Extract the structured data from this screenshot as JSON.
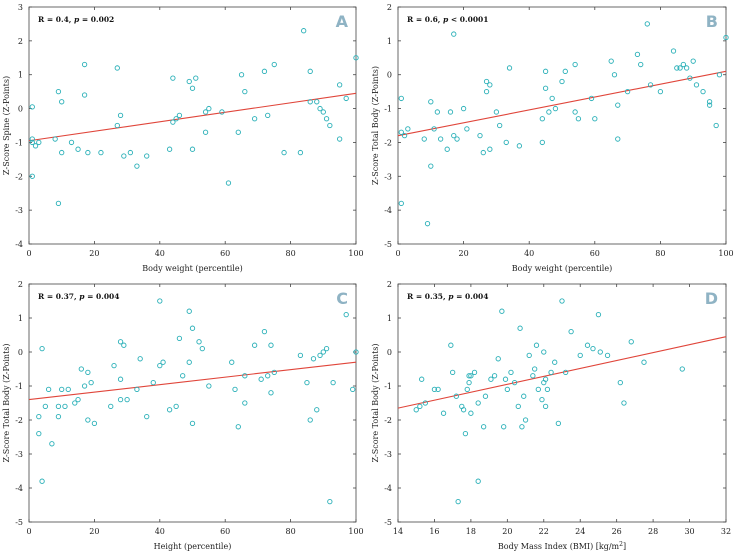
{
  "colors": {
    "point": "#2ab0b8",
    "fit_line": "#e0453a",
    "axis": "#444444",
    "letter": "#8fb3c4"
  },
  "chart_data": [
    {
      "type": "scatter",
      "panel_label": "A",
      "stat_r": "R = 0.4, ",
      "stat_p": "p",
      "stat_p_rest": " = 0.002",
      "xlabel": "Body weight (percentile)",
      "ylabel": "Z-Score Spine (Z-Points)",
      "xlim": [
        0,
        100
      ],
      "ylim": [
        -4,
        3
      ],
      "xticks": [
        0,
        20,
        40,
        60,
        80,
        100
      ],
      "yticks": [
        3,
        2,
        1,
        0,
        -1,
        -2,
        -3,
        -4
      ],
      "fit_line": {
        "x": [
          0,
          100
        ],
        "y": [
          -0.95,
          0.45
        ]
      },
      "points": [
        [
          1,
          -0.9
        ],
        [
          1,
          -1.0
        ],
        [
          1,
          -2.0
        ],
        [
          1,
          0.05
        ],
        [
          2,
          -1.1
        ],
        [
          3,
          -1.0
        ],
        [
          8,
          -0.9
        ],
        [
          9,
          -2.8
        ],
        [
          9,
          0.5
        ],
        [
          10,
          0.2
        ],
        [
          10,
          -1.3
        ],
        [
          13,
          -1.0
        ],
        [
          15,
          -1.2
        ],
        [
          17,
          1.3
        ],
        [
          17,
          0.4
        ],
        [
          18,
          -1.3
        ],
        [
          22,
          -1.3
        ],
        [
          27,
          1.2
        ],
        [
          27,
          -0.5
        ],
        [
          28,
          -0.2
        ],
        [
          29,
          -1.4
        ],
        [
          31,
          -1.3
        ],
        [
          33,
          -1.7
        ],
        [
          36,
          -1.4
        ],
        [
          43,
          -1.2
        ],
        [
          44,
          0.9
        ],
        [
          44,
          -0.4
        ],
        [
          45,
          -0.3
        ],
        [
          46,
          -0.2
        ],
        [
          49,
          0.8
        ],
        [
          50,
          0.6
        ],
        [
          50,
          -1.2
        ],
        [
          51,
          0.9
        ],
        [
          54,
          -0.7
        ],
        [
          54,
          -0.1
        ],
        [
          55,
          0.0
        ],
        [
          59,
          -0.1
        ],
        [
          61,
          -2.2
        ],
        [
          64,
          -0.7
        ],
        [
          65,
          1.0
        ],
        [
          66,
          0.5
        ],
        [
          69,
          -0.3
        ],
        [
          72,
          1.1
        ],
        [
          73,
          -0.2
        ],
        [
          75,
          1.3
        ],
        [
          78,
          -1.3
        ],
        [
          83,
          -1.3
        ],
        [
          84,
          2.3
        ],
        [
          86,
          1.1
        ],
        [
          86,
          0.2
        ],
        [
          88,
          0.2
        ],
        [
          89,
          0.0
        ],
        [
          90,
          -0.1
        ],
        [
          91,
          -0.3
        ],
        [
          92,
          -0.5
        ],
        [
          95,
          -0.9
        ],
        [
          95,
          0.7
        ],
        [
          97,
          0.3
        ],
        [
          100,
          1.5
        ]
      ]
    },
    {
      "type": "scatter",
      "panel_label": "B",
      "stat_r": "R = 0.6, ",
      "stat_p": "p",
      "stat_p_rest": " < 0.0001",
      "xlabel": "Body weight (percentile)",
      "ylabel": "Z-Score Total Body (Z-Points)",
      "xlim": [
        0,
        100
      ],
      "ylim": [
        -5,
        2
      ],
      "xticks": [
        0,
        20,
        40,
        60,
        80,
        100
      ],
      "yticks": [
        2,
        1,
        0,
        -1,
        -2,
        -3,
        -4,
        -5
      ],
      "fit_line": {
        "x": [
          0,
          100
        ],
        "y": [
          -1.8,
          0.1
        ]
      },
      "points": [
        [
          1,
          -3.8
        ],
        [
          1,
          -1.7
        ],
        [
          1,
          -0.7
        ],
        [
          2,
          -1.8
        ],
        [
          3,
          -1.6
        ],
        [
          8,
          -1.9
        ],
        [
          9,
          -4.4
        ],
        [
          10,
          -0.8
        ],
        [
          10,
          -2.7
        ],
        [
          11,
          -1.6
        ],
        [
          12,
          -1.1
        ],
        [
          13,
          -1.9
        ],
        [
          15,
          -2.2
        ],
        [
          16,
          -1.1
        ],
        [
          17,
          -1.8
        ],
        [
          17,
          1.2
        ],
        [
          18,
          -1.9
        ],
        [
          20,
          -1.0
        ],
        [
          21,
          -1.6
        ],
        [
          25,
          -1.8
        ],
        [
          26,
          -2.3
        ],
        [
          27,
          -0.2
        ],
        [
          27,
          -0.5
        ],
        [
          28,
          -0.3
        ],
        [
          28,
          -2.2
        ],
        [
          30,
          -1.1
        ],
        [
          31,
          -1.5
        ],
        [
          33,
          -2.0
        ],
        [
          34,
          0.2
        ],
        [
          37,
          -2.1
        ],
        [
          44,
          -2.0
        ],
        [
          44,
          -1.3
        ],
        [
          45,
          0.1
        ],
        [
          45,
          -0.4
        ],
        [
          46,
          -1.1
        ],
        [
          47,
          -0.7
        ],
        [
          48,
          -1.0
        ],
        [
          50,
          -0.2
        ],
        [
          51,
          0.1
        ],
        [
          54,
          0.3
        ],
        [
          54,
          -1.1
        ],
        [
          55,
          -1.3
        ],
        [
          59,
          -0.7
        ],
        [
          60,
          -1.3
        ],
        [
          65,
          0.4
        ],
        [
          66,
          0.0
        ],
        [
          67,
          -0.9
        ],
        [
          67,
          -1.9
        ],
        [
          70,
          -0.5
        ],
        [
          73,
          0.6
        ],
        [
          74,
          0.3
        ],
        [
          76,
          1.5
        ],
        [
          77,
          -0.3
        ],
        [
          80,
          -0.5
        ],
        [
          84,
          0.7
        ],
        [
          85,
          0.2
        ],
        [
          86,
          0.2
        ],
        [
          87,
          0.3
        ],
        [
          88,
          0.2
        ],
        [
          89,
          -0.1
        ],
        [
          90,
          0.4
        ],
        [
          91,
          -0.3
        ],
        [
          93,
          -0.5
        ],
        [
          95,
          -0.8
        ],
        [
          95,
          -0.9
        ],
        [
          97,
          -1.5
        ],
        [
          98,
          0.0
        ],
        [
          100,
          1.1
        ]
      ]
    },
    {
      "type": "scatter",
      "panel_label": "C",
      "stat_r": "R = 0.37, ",
      "stat_p": "p",
      "stat_p_rest": " = 0.004",
      "xlabel": "Height (percentile)",
      "ylabel": "Z-Score Total Body (Z-Points)",
      "xlim": [
        0,
        100
      ],
      "ylim": [
        -5,
        2
      ],
      "xticks": [
        0,
        20,
        40,
        60,
        80,
        100
      ],
      "yticks": [
        2,
        1,
        0,
        -1,
        -2,
        -3,
        -4,
        -5
      ],
      "fit_line": {
        "x": [
          0,
          100
        ],
        "y": [
          -1.4,
          -0.3
        ]
      },
      "points": [
        [
          3,
          -1.9
        ],
        [
          3,
          -2.4
        ],
        [
          4,
          -3.8
        ],
        [
          4,
          0.1
        ],
        [
          5,
          -1.6
        ],
        [
          6,
          -1.1
        ],
        [
          7,
          -2.7
        ],
        [
          9,
          -1.9
        ],
        [
          9,
          -1.6
        ],
        [
          10,
          -1.1
        ],
        [
          11,
          -1.6
        ],
        [
          12,
          -1.1
        ],
        [
          14,
          -1.5
        ],
        [
          15,
          -1.4
        ],
        [
          16,
          -0.5
        ],
        [
          17,
          -1.0
        ],
        [
          18,
          -2.0
        ],
        [
          18,
          -0.6
        ],
        [
          19,
          -0.9
        ],
        [
          20,
          -2.1
        ],
        [
          25,
          -1.6
        ],
        [
          26,
          -0.4
        ],
        [
          28,
          0.3
        ],
        [
          28,
          -0.8
        ],
        [
          28,
          -1.4
        ],
        [
          29,
          0.2
        ],
        [
          30,
          -1.4
        ],
        [
          33,
          -1.1
        ],
        [
          34,
          -0.2
        ],
        [
          36,
          -1.9
        ],
        [
          38,
          -0.9
        ],
        [
          40,
          1.5
        ],
        [
          40,
          -0.4
        ],
        [
          41,
          -0.3
        ],
        [
          43,
          -1.7
        ],
        [
          45,
          -1.6
        ],
        [
          46,
          0.4
        ],
        [
          47,
          -0.7
        ],
        [
          49,
          -0.3
        ],
        [
          49,
          1.2
        ],
        [
          50,
          0.7
        ],
        [
          50,
          -2.1
        ],
        [
          52,
          0.3
        ],
        [
          53,
          0.1
        ],
        [
          55,
          -1.0
        ],
        [
          62,
          -0.3
        ],
        [
          63,
          -1.1
        ],
        [
          64,
          -2.2
        ],
        [
          66,
          -1.5
        ],
        [
          66,
          -0.7
        ],
        [
          69,
          0.2
        ],
        [
          71,
          -0.8
        ],
        [
          72,
          0.6
        ],
        [
          73,
          -0.7
        ],
        [
          74,
          -1.2
        ],
        [
          74,
          0.2
        ],
        [
          75,
          -0.6
        ],
        [
          83,
          -0.1
        ],
        [
          85,
          -0.9
        ],
        [
          86,
          -2.0
        ],
        [
          87,
          -0.2
        ],
        [
          88,
          -1.7
        ],
        [
          89,
          -0.1
        ],
        [
          90,
          0.0
        ],
        [
          91,
          0.1
        ],
        [
          92,
          -4.4
        ],
        [
          93,
          -0.9
        ],
        [
          97,
          1.1
        ],
        [
          99,
          -1.1
        ],
        [
          100,
          0.0
        ]
      ]
    },
    {
      "type": "scatter",
      "panel_label": "D",
      "stat_r": "R = 0.35, ",
      "stat_p": "p",
      "stat_p_rest": " = 0.004",
      "xlabel": "Body Mass Index (BMI) [kg/m",
      "xlabel_sup": "2",
      "xlabel_end": "]",
      "ylabel": "Z-Score Total Body (Z-Points)",
      "xlim": [
        14,
        32
      ],
      "ylim": [
        -5,
        2
      ],
      "xticks": [
        14,
        16,
        18,
        20,
        22,
        24,
        26,
        28,
        30,
        32
      ],
      "yticks": [
        2,
        1,
        0,
        -1,
        -2,
        -3,
        -4,
        -5
      ],
      "fit_line": {
        "x": [
          14,
          32
        ],
        "y": [
          -1.65,
          0.45
        ]
      },
      "points": [
        [
          15.0,
          -1.7
        ],
        [
          15.2,
          -1.6
        ],
        [
          15.3,
          -0.8
        ],
        [
          15.5,
          -1.5
        ],
        [
          16.0,
          -1.1
        ],
        [
          16.2,
          -1.1
        ],
        [
          16.5,
          -1.8
        ],
        [
          16.9,
          0.2
        ],
        [
          17.0,
          -0.6
        ],
        [
          17.2,
          -1.3
        ],
        [
          17.3,
          -4.4
        ],
        [
          17.5,
          -1.6
        ],
        [
          17.6,
          -1.7
        ],
        [
          17.7,
          -2.4
        ],
        [
          17.8,
          -1.1
        ],
        [
          17.9,
          -0.7
        ],
        [
          17.9,
          -0.9
        ],
        [
          18.0,
          -0.7
        ],
        [
          18.0,
          -1.8
        ],
        [
          18.2,
          -0.6
        ],
        [
          18.4,
          -1.5
        ],
        [
          18.4,
          -3.8
        ],
        [
          18.7,
          -2.2
        ],
        [
          18.8,
          -1.3
        ],
        [
          19.1,
          -0.8
        ],
        [
          19.3,
          -0.7
        ],
        [
          19.5,
          -0.2
        ],
        [
          19.7,
          1.2
        ],
        [
          19.8,
          -2.2
        ],
        [
          19.9,
          -0.8
        ],
        [
          20.0,
          -1.1
        ],
        [
          20.2,
          -0.6
        ],
        [
          20.4,
          -0.9
        ],
        [
          20.6,
          -1.6
        ],
        [
          20.7,
          0.7
        ],
        [
          20.8,
          -2.2
        ],
        [
          20.9,
          -1.3
        ],
        [
          21.0,
          -2.0
        ],
        [
          21.2,
          -0.1
        ],
        [
          21.4,
          -0.7
        ],
        [
          21.5,
          -0.5
        ],
        [
          21.6,
          0.2
        ],
        [
          21.7,
          -1.1
        ],
        [
          21.9,
          -1.4
        ],
        [
          22.0,
          -0.9
        ],
        [
          22.0,
          0.0
        ],
        [
          22.1,
          -1.6
        ],
        [
          22.1,
          -0.8
        ],
        [
          22.2,
          -1.1
        ],
        [
          22.4,
          -0.6
        ],
        [
          22.6,
          -0.3
        ],
        [
          22.8,
          -2.1
        ],
        [
          23.0,
          1.5
        ],
        [
          23.2,
          -0.6
        ],
        [
          23.5,
          0.6
        ],
        [
          24.0,
          -0.1
        ],
        [
          24.4,
          0.2
        ],
        [
          24.7,
          0.1
        ],
        [
          25.0,
          1.1
        ],
        [
          25.1,
          0.0
        ],
        [
          25.5,
          -0.1
        ],
        [
          26.2,
          -0.9
        ],
        [
          26.4,
          -1.5
        ],
        [
          26.8,
          0.3
        ],
        [
          27.5,
          -0.3
        ],
        [
          29.6,
          -0.5
        ]
      ]
    }
  ]
}
